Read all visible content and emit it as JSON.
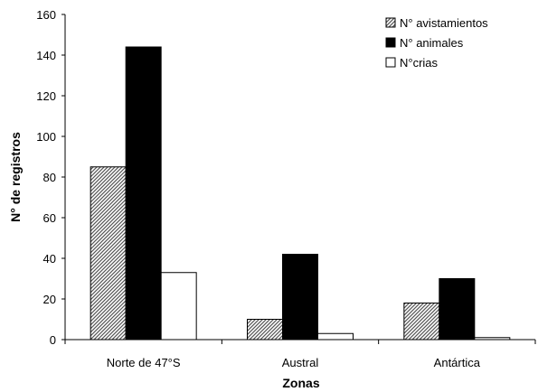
{
  "chart_data": {
    "type": "bar",
    "categories": [
      "Norte de 47°S",
      "Austral",
      "Antártica"
    ],
    "series": [
      {
        "name": "N° avistamientos",
        "values": [
          85,
          10,
          18
        ],
        "fill": "pattern-hatch"
      },
      {
        "name": "N° animales",
        "values": [
          144,
          42,
          30
        ],
        "fill": "#000000"
      },
      {
        "name": "N°crias",
        "values": [
          33,
          3,
          1
        ],
        "fill": "#ffffff"
      }
    ],
    "xlabel": "Zonas",
    "ylabel": "N° de registros",
    "ylim": [
      0,
      160
    ],
    "yticks": [
      "0",
      "20",
      "40",
      "60",
      "80",
      "100",
      "120",
      "140",
      "160"
    ],
    "grid": false,
    "legend_position": "top-right"
  }
}
